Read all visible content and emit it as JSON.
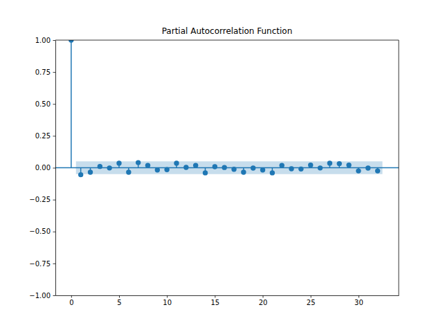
{
  "chart_data": {
    "type": "stem",
    "title": "Partial Autocorrelation Function",
    "x": [
      0,
      1,
      2,
      3,
      4,
      5,
      6,
      7,
      8,
      9,
      10,
      11,
      12,
      13,
      14,
      15,
      16,
      17,
      18,
      19,
      20,
      21,
      22,
      23,
      24,
      25,
      26,
      27,
      28,
      29,
      30,
      31,
      32
    ],
    "values": [
      1.0,
      -0.055,
      -0.035,
      0.01,
      -0.002,
      0.035,
      -0.035,
      0.04,
      0.018,
      -0.018,
      -0.015,
      0.035,
      0.003,
      0.018,
      -0.04,
      0.008,
      0.002,
      -0.012,
      -0.035,
      -0.003,
      -0.018,
      -0.04,
      0.018,
      -0.008,
      -0.01,
      0.02,
      -0.002,
      0.035,
      0.032,
      0.02,
      -0.025,
      -0.003,
      -0.025
    ],
    "confidence_interval": [
      -0.05,
      0.05
    ],
    "color": "#1f77b4",
    "marker": "circle",
    "xlim": [
      -1.65,
      34.2
    ],
    "xticks": [
      0,
      5,
      10,
      15,
      20,
      25,
      30
    ],
    "ylim": [
      -1,
      1
    ],
    "yticks": [
      {
        "value": -1,
        "label": "−1.00"
      },
      {
        "value": -0.75,
        "label": "−0.75"
      },
      {
        "value": -0.5,
        "label": "−0.50"
      },
      {
        "value": -0.25,
        "label": "−0.25"
      },
      {
        "value": 0,
        "label": "0.00"
      },
      {
        "value": 0.25,
        "label": "0.25"
      },
      {
        "value": 0.5,
        "label": "0.50"
      },
      {
        "value": 0.75,
        "label": "0.75"
      },
      {
        "value": 1,
        "label": "1.00"
      }
    ],
    "grid": false
  }
}
